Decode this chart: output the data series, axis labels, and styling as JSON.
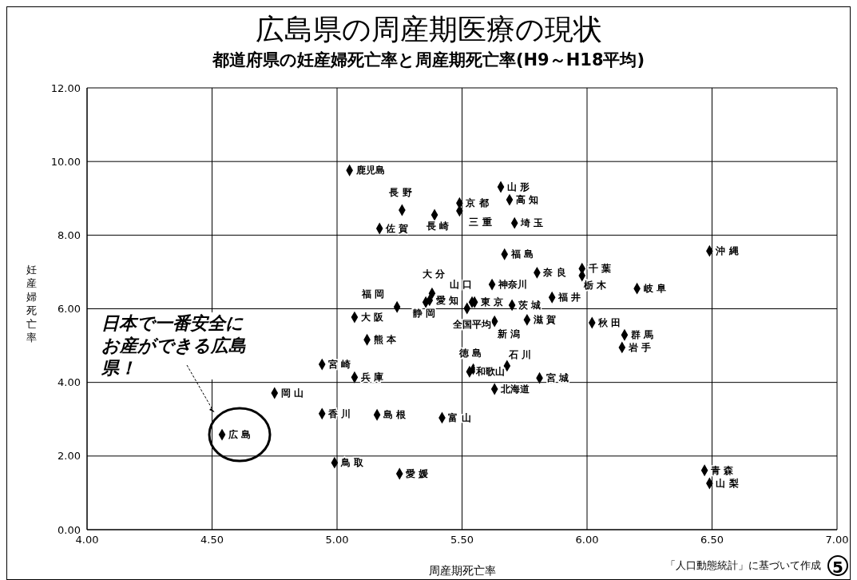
{
  "chart_data": {
    "type": "scatter",
    "title": "広島県の周産期医療の現状",
    "subtitle": "都道府県の妊産婦死亡率と周産期死亡率(H9～H18平均)",
    "xlabel": "周産期死亡率",
    "ylabel": "妊産婦死亡率",
    "x": [
      5.05,
      5.655,
      5.26,
      5.49,
      5.69,
      5.49,
      5.39,
      5.17,
      5.71,
      5.67,
      5.98,
      5.8,
      5.98,
      6.2,
      6.49,
      5.62,
      5.38,
      5.24,
      5.54,
      5.55,
      5.37,
      5.355,
      5.52,
      5.7,
      5.86,
      5.07,
      5.76,
      5.63,
      6.02,
      5.12,
      5.545,
      5.53,
      5.68,
      5.81,
      5.63,
      4.94,
      5.07,
      6.15,
      6.14,
      4.75,
      4.94,
      5.16,
      5.42,
      4.54,
      4.99,
      5.25,
      6.47,
      6.49
    ],
    "values": [
      9.76,
      9.31,
      8.68,
      8.87,
      8.96,
      8.66,
      8.55,
      8.18,
      8.33,
      7.48,
      7.09,
      6.98,
      6.9,
      6.55,
      7.57,
      6.66,
      6.42,
      6.05,
      6.18,
      6.18,
      6.23,
      6.18,
      6.01,
      6.1,
      6.31,
      5.77,
      5.7,
      5.66,
      5.62,
      5.16,
      4.36,
      4.29,
      4.45,
      4.12,
      3.82,
      4.49,
      4.14,
      5.29,
      4.95,
      3.71,
      3.15,
      3.12,
      3.04,
      2.58,
      1.82,
      1.52,
      1.61,
      1.26
    ],
    "color": "#000000",
    "marker": "diamond",
    "grid": true,
    "xlim": [
      4,
      7
    ],
    "xticks": [
      {
        "value": 4,
        "label": "4.00"
      },
      {
        "value": 4.5,
        "label": "4.50"
      },
      {
        "value": 5,
        "label": "5.00"
      },
      {
        "value": 5.5,
        "label": "5.50"
      },
      {
        "value": 6,
        "label": "6.00"
      },
      {
        "value": 6.5,
        "label": "6.50"
      },
      {
        "value": 7,
        "label": "7.00"
      }
    ],
    "ylim": [
      0,
      12
    ],
    "yticks": [
      {
        "value": 0,
        "label": "0.00"
      },
      {
        "value": 2,
        "label": "2.00"
      },
      {
        "value": 4,
        "label": "4.00"
      },
      {
        "value": 6,
        "label": "6.00"
      },
      {
        "value": 8,
        "label": "8.00"
      },
      {
        "value": 10,
        "label": "10.00"
      },
      {
        "value": 12,
        "label": "12.00"
      }
    ],
    "annotations": [
      {
        "text": "鹿児島",
        "x": 5.05,
        "y": 9.76
      },
      {
        "text": "山 形",
        "x": 5.655,
        "y": 9.31
      },
      {
        "text": "長 野",
        "x": 5.26,
        "y": 8.68
      },
      {
        "text": "京 都",
        "x": 5.49,
        "y": 8.87
      },
      {
        "text": "高 知",
        "x": 5.69,
        "y": 8.96
      },
      {
        "text": "三 重",
        "x": 5.49,
        "y": 8.66
      },
      {
        "text": "長 崎",
        "x": 5.39,
        "y": 8.55
      },
      {
        "text": "佐 賀",
        "x": 5.17,
        "y": 8.18
      },
      {
        "text": "埼 玉",
        "x": 5.71,
        "y": 8.33
      },
      {
        "text": "福 島",
        "x": 5.67,
        "y": 7.48
      },
      {
        "text": "千 葉",
        "x": 5.98,
        "y": 7.09
      },
      {
        "text": "奈 良",
        "x": 5.8,
        "y": 6.98
      },
      {
        "text": "栃 木",
        "x": 5.98,
        "y": 6.9
      },
      {
        "text": "岐 阜",
        "x": 6.2,
        "y": 6.55
      },
      {
        "text": "沖 縄",
        "x": 6.49,
        "y": 7.57
      },
      {
        "text": "神奈川",
        "x": 5.62,
        "y": 6.66
      },
      {
        "text": "大 分",
        "x": 5.38,
        "y": 6.42
      },
      {
        "text": "福 岡",
        "x": 5.24,
        "y": 6.05
      },
      {
        "text": "山 口",
        "x": 5.54,
        "y": 6.18
      },
      {
        "text": "東 京",
        "x": 5.55,
        "y": 6.18
      },
      {
        "text": "愛 知",
        "x": 5.37,
        "y": 6.23
      },
      {
        "text": "静 岡",
        "x": 5.355,
        "y": 6.18
      },
      {
        "text": "全国平均",
        "x": 5.52,
        "y": 6.01
      },
      {
        "text": "茨 城",
        "x": 5.7,
        "y": 6.1
      },
      {
        "text": "福 井",
        "x": 5.86,
        "y": 6.31
      },
      {
        "text": "大 阪",
        "x": 5.07,
        "y": 5.77
      },
      {
        "text": "滋 賀",
        "x": 5.76,
        "y": 5.7
      },
      {
        "text": "新 潟",
        "x": 5.63,
        "y": 5.66
      },
      {
        "text": "秋 田",
        "x": 6.02,
        "y": 5.62
      },
      {
        "text": "熊 本",
        "x": 5.12,
        "y": 5.16
      },
      {
        "text": "徳 島",
        "x": 5.545,
        "y": 4.36
      },
      {
        "text": "和歌山",
        "x": 5.53,
        "y": 4.29
      },
      {
        "text": "石 川",
        "x": 5.68,
        "y": 4.45
      },
      {
        "text": "宮 城",
        "x": 5.81,
        "y": 4.12
      },
      {
        "text": "北海道",
        "x": 5.63,
        "y": 3.82
      },
      {
        "text": "宮 崎",
        "x": 4.94,
        "y": 4.49
      },
      {
        "text": "兵 庫",
        "x": 5.07,
        "y": 4.14
      },
      {
        "text": "群 馬",
        "x": 6.15,
        "y": 5.29
      },
      {
        "text": "岩 手",
        "x": 6.14,
        "y": 4.95
      },
      {
        "text": "岡 山",
        "x": 4.75,
        "y": 3.71
      },
      {
        "text": "香 川",
        "x": 4.94,
        "y": 3.15
      },
      {
        "text": "島 根",
        "x": 5.16,
        "y": 3.12
      },
      {
        "text": "富 山",
        "x": 5.42,
        "y": 3.04
      },
      {
        "text": "広 島",
        "x": 4.54,
        "y": 2.58
      },
      {
        "text": "鳥 取",
        "x": 4.99,
        "y": 1.82
      },
      {
        "text": "愛 媛",
        "x": 5.25,
        "y": 1.52
      },
      {
        "text": "青 森",
        "x": 6.47,
        "y": 1.61
      },
      {
        "text": "山 梨",
        "x": 6.49,
        "y": 1.26
      },
      "日本で一番安全にお産ができる広島県！",
      "「人口動態統計」に基づいて作成",
      "5"
    ]
  }
}
